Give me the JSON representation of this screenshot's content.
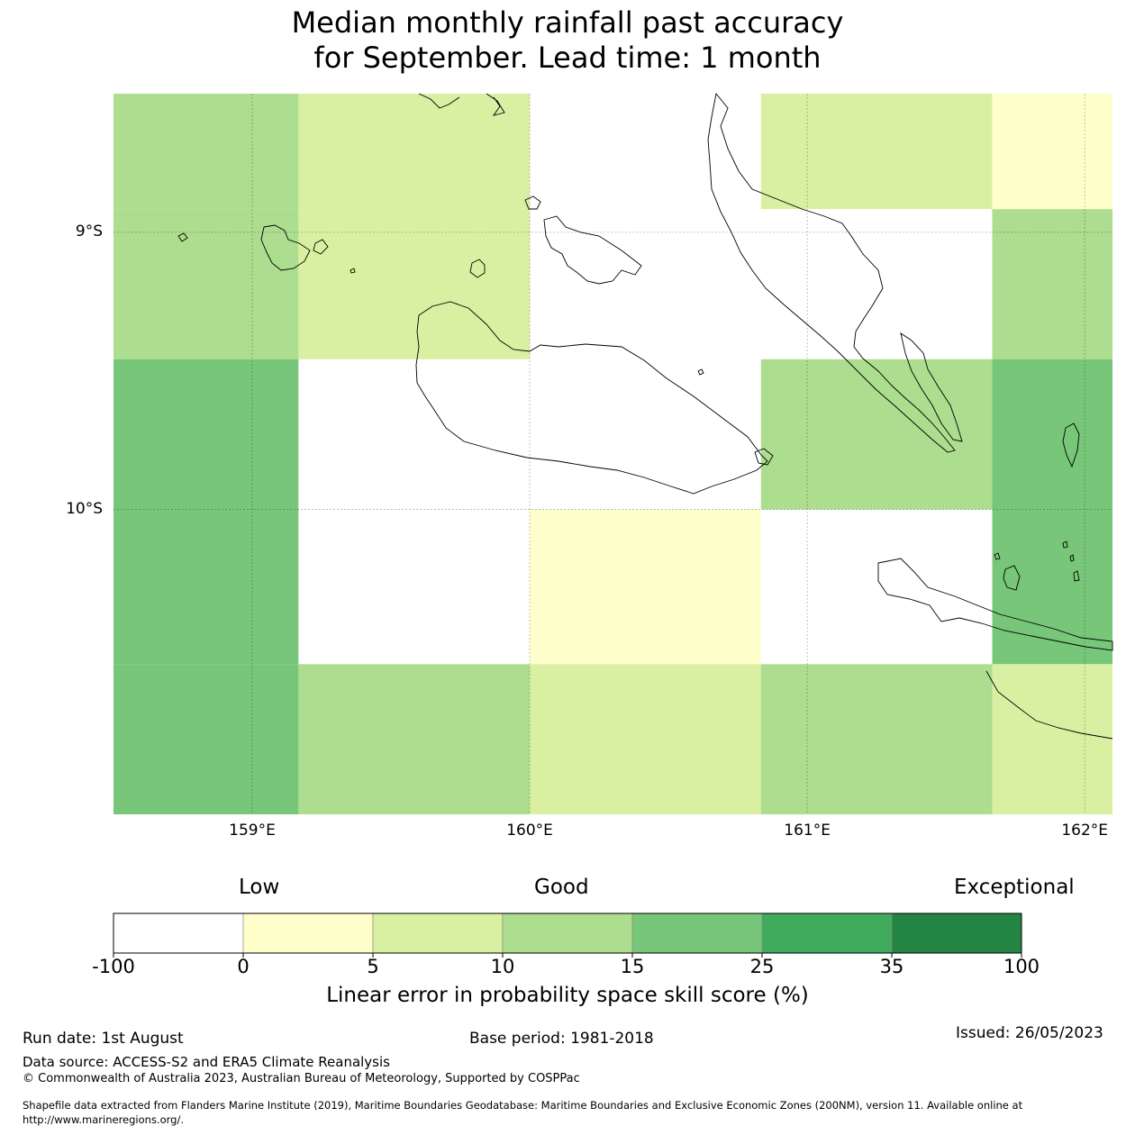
{
  "title": {
    "line1": "Median monthly rainfall past accuracy",
    "line2": "for September. Lead time: 1 month"
  },
  "map": {
    "lon_range": [
      158.5,
      162.1
    ],
    "lat_range": [
      -11.1,
      -8.5
    ],
    "lat_ticks": [
      {
        "value": -9,
        "label": "9°S"
      },
      {
        "value": -10,
        "label": "10°S"
      }
    ],
    "lon_ticks": [
      {
        "value": 159,
        "label": "159°E"
      },
      {
        "value": 160,
        "label": "160°E"
      },
      {
        "value": 161,
        "label": "161°E"
      },
      {
        "value": 162,
        "label": "162°E"
      }
    ],
    "colors": {
      "lt0": "#ffffff",
      "0-5": "#ffffcc",
      "5-10": "#d9f0a3",
      "10-15": "#addd8e",
      "15-25": "#78c679",
      "25-35": "#41ab5d",
      "35-100": "#238443"
    },
    "grid_lon_edges": [
      158.5,
      159.1667,
      160.0,
      160.8333,
      161.6667,
      162.1
    ],
    "grid_lat_edges": [
      -8.5,
      -8.9167,
      -9.4583,
      -10.0,
      -10.5583,
      -11.1
    ],
    "cells": [
      [
        "10-15",
        "5-10",
        "lt0",
        "5-10",
        "0-5"
      ],
      [
        "10-15",
        "5-10",
        "lt0",
        "lt0",
        "10-15"
      ],
      [
        "15-25",
        "lt0",
        "lt0",
        "10-15",
        "15-25"
      ],
      [
        "15-25",
        "lt0",
        "0-5",
        "lt0",
        "15-25"
      ],
      [
        "15-25",
        "10-15",
        "5-10",
        "10-15",
        "5-10"
      ]
    ]
  },
  "colorbar": {
    "low": "Low",
    "good": "Good",
    "exceptional": "Exceptional",
    "ticks": [
      "-100",
      "0",
      "5",
      "10",
      "15",
      "25",
      "35",
      "100"
    ],
    "label": "Linear error in probability space skill score (%)"
  },
  "footer": {
    "run_date": "Run date: 1st August",
    "base_period": "Base period: 1981-2018",
    "issued": "Issued: 26/05/2023",
    "data_source": "Data source: ACCESS-S2 and ERA5 Climate Reanalysis",
    "copyright": "© Commonwealth of Australia 2023, Australian Bureau of Meteorology, Supported by COSPPac",
    "shapefile_line1": "Shapefile data extracted from Flanders Marine Institute (2019), Maritime Boundaries Geodatabase: Maritime Boundaries and Exclusive Economic Zones (200NM), version 11. Available online at",
    "shapefile_line2": "http://www.marineregions.org/."
  }
}
